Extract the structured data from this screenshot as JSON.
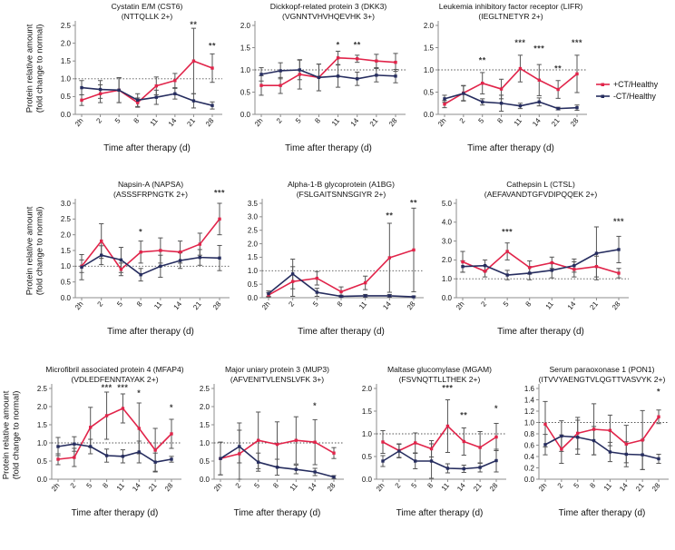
{
  "figure": {
    "x_axis_label": "Time after therapy (d)",
    "y_axis_label_line1": "Protein relative amount",
    "y_axis_label_line2": "(fold change to normal)",
    "colors": {
      "treated": "#e1244a",
      "untreated": "#262d5f",
      "error_bar": "#555555",
      "axis": "#8c8c8c",
      "reference_line": "#555555"
    },
    "legend": {
      "items": [
        {
          "label": "+CT/Healthy",
          "color": "#e1244a"
        },
        {
          "label": "-CT/Healthy",
          "color": "#262d5f"
        }
      ]
    }
  },
  "chart_data": [
    {
      "type": "line",
      "id": "cst6",
      "title_line1": "Cystatin E/M (CST6)",
      "title_line2": "(NTTQLLK 2+)",
      "categories": [
        "2h",
        "2",
        "5",
        "8",
        "11",
        "14",
        "21",
        "28"
      ],
      "ylim": [
        0,
        2.5
      ],
      "ytick_step": 0.5,
      "reference_line": 1.0,
      "series": [
        {
          "name": "+CT/Healthy",
          "color": "#e1244a",
          "values": [
            0.4,
            0.58,
            0.68,
            0.33,
            0.8,
            0.95,
            1.5,
            1.3
          ],
          "errors": [
            0.15,
            0.25,
            0.35,
            0.13,
            0.25,
            0.2,
            0.92,
            0.4
          ]
        },
        {
          "name": "-CT/Healthy",
          "color": "#262d5f",
          "values": [
            0.75,
            0.7,
            0.68,
            0.4,
            0.48,
            0.58,
            0.38,
            0.25
          ],
          "errors": [
            0.2,
            0.25,
            0.35,
            0.18,
            0.2,
            0.15,
            0.2,
            0.1
          ]
        }
      ],
      "significance": [
        {
          "cat": "21",
          "label": "**",
          "y": 2.45
        },
        {
          "cat": "28",
          "label": "**",
          "y": 1.85
        }
      ]
    },
    {
      "type": "line",
      "id": "dkk3",
      "title_line1": "Dickkopf-related protein 3 (DKK3)",
      "title_line2": "(VGNNTVHVHQEVHK 3+)",
      "categories": [
        "2h",
        "2",
        "5",
        "8",
        "11",
        "14",
        "21",
        "28"
      ],
      "ylim": [
        0,
        2.0
      ],
      "ytick_step": 0.5,
      "reference_line": 1.0,
      "series": [
        {
          "name": "+CT/Healthy",
          "color": "#e1244a",
          "values": [
            0.65,
            0.65,
            0.9,
            0.83,
            1.27,
            1.25,
            1.2,
            1.17
          ],
          "errors": [
            0.22,
            0.18,
            0.33,
            0.3,
            0.15,
            0.08,
            0.15,
            0.2
          ]
        },
        {
          "name": "-CT/Healthy",
          "color": "#262d5f",
          "values": [
            0.9,
            0.98,
            1.0,
            0.83,
            0.86,
            0.8,
            0.88,
            0.86
          ],
          "errors": [
            0.15,
            0.18,
            0.22,
            0.3,
            0.25,
            0.15,
            0.15,
            0.15
          ]
        }
      ],
      "significance": [
        {
          "cat": "11",
          "label": "*",
          "y": 1.5
        },
        {
          "cat": "14",
          "label": "**",
          "y": 1.5
        }
      ]
    },
    {
      "type": "line",
      "id": "lifr",
      "title_line1": "Leukemia inhibitory factor receptor (LIFR)",
      "title_line2": "(IEGLTNETYR 2+)",
      "categories": [
        "2h",
        "2",
        "5",
        "8",
        "11",
        "14",
        "21",
        "28"
      ],
      "ylim": [
        0,
        2.0
      ],
      "ytick_step": 0.5,
      "reference_line": 1.0,
      "series": [
        {
          "name": "+CT/Healthy",
          "color": "#e1244a",
          "values": [
            0.23,
            0.48,
            0.7,
            0.57,
            1.03,
            0.77,
            0.56,
            0.91
          ],
          "errors": [
            0.08,
            0.17,
            0.24,
            0.22,
            0.3,
            0.35,
            0.2,
            0.42
          ]
        },
        {
          "name": "-CT/Healthy",
          "color": "#262d5f",
          "values": [
            0.35,
            0.47,
            0.28,
            0.25,
            0.19,
            0.28,
            0.13,
            0.15
          ],
          "errors": [
            0.08,
            0.17,
            0.07,
            0.18,
            0.06,
            0.09,
            0.03,
            0.06
          ]
        }
      ],
      "significance": [
        {
          "cat": "5",
          "label": "**",
          "y": 1.15
        },
        {
          "cat": "11",
          "label": "***",
          "y": 1.55
        },
        {
          "cat": "14",
          "label": "***",
          "y": 1.42
        },
        {
          "cat": "21",
          "label": "**",
          "y": 0.97
        },
        {
          "cat": "28",
          "label": "***",
          "y": 1.55
        }
      ]
    },
    {
      "type": "line",
      "id": "napsa",
      "title_line1": "Napsin-A (NAPSA)",
      "title_line2": "(ASSSFRPNGTK 2+)",
      "categories": [
        "2h",
        "2",
        "5",
        "8",
        "11",
        "14",
        "21",
        "28"
      ],
      "ylim": [
        0,
        3.0
      ],
      "ytick_step": 0.5,
      "reference_line": 1.0,
      "series": [
        {
          "name": "+CT/Healthy",
          "color": "#e1244a",
          "values": [
            1.0,
            1.8,
            0.9,
            1.45,
            1.5,
            1.45,
            1.7,
            2.5
          ],
          "errors": [
            0.2,
            0.55,
            0.2,
            0.35,
            0.4,
            0.35,
            0.35,
            0.5
          ]
        },
        {
          "name": "-CT/Healthy",
          "color": "#262d5f",
          "values": [
            0.97,
            1.35,
            1.2,
            0.73,
            1.0,
            1.18,
            1.28,
            1.26
          ],
          "errors": [
            0.4,
            0.3,
            0.4,
            0.2,
            0.35,
            0.25,
            0.25,
            0.4
          ]
        }
      ],
      "significance": [
        {
          "cat": "8",
          "label": "*",
          "y": 2.0
        },
        {
          "cat": "28",
          "label": "***",
          "y": 3.25
        }
      ]
    },
    {
      "type": "line",
      "id": "a1bg",
      "title_line1": "Alpha-1-B glycoprotein (A1BG)",
      "title_line2": "(FSLGAITSNNSGIYR 2+)",
      "categories": [
        "2h",
        "2",
        "5",
        "8",
        "11",
        "14",
        "28"
      ],
      "ylim": [
        0,
        3.5
      ],
      "ytick_step": 0.5,
      "reference_line": 1.0,
      "series": [
        {
          "name": "+CT/Healthy",
          "color": "#e1244a",
          "values": [
            0.1,
            0.6,
            0.72,
            0.22,
            0.55,
            1.48,
            1.77
          ],
          "errors": [
            0.08,
            0.55,
            0.25,
            0.18,
            0.25,
            1.28,
            1.55
          ]
        },
        {
          "name": "-CT/Healthy",
          "color": "#262d5f",
          "values": [
            0.15,
            0.88,
            0.2,
            0.05,
            0.07,
            0.07,
            0.03
          ],
          "errors": [
            0.1,
            0.55,
            0.15,
            0.04,
            0.05,
            0.05,
            0.03
          ]
        }
      ],
      "significance": [
        {
          "cat": "14",
          "label": "**",
          "y": 2.95
        },
        {
          "cat": "28",
          "label": "**",
          "y": 3.42
        }
      ]
    },
    {
      "type": "line",
      "id": "ctsl",
      "title_line1": "Cathepsin L (CTSL)",
      "title_line2": "(AEFAVANDTGFVDIPQQEK 2+)",
      "categories": [
        "2h",
        "2",
        "5",
        "8",
        "11",
        "14",
        "21",
        "28"
      ],
      "ylim": [
        0,
        5.0
      ],
      "ytick_step": 1.0,
      "reference_line": 1.0,
      "series": [
        {
          "name": "+CT/Healthy",
          "color": "#e1244a",
          "values": [
            1.9,
            1.4,
            2.45,
            1.6,
            1.85,
            1.5,
            1.65,
            1.3
          ],
          "errors": [
            0.55,
            0.3,
            0.45,
            0.35,
            0.3,
            0.4,
            0.55,
            0.25
          ]
        },
        {
          "name": "-CT/Healthy",
          "color": "#262d5f",
          "values": [
            1.65,
            1.7,
            1.2,
            1.3,
            1.45,
            1.7,
            2.35,
            2.55
          ],
          "errors": [
            0.3,
            0.3,
            0.25,
            0.35,
            0.4,
            0.35,
            1.4,
            0.7
          ]
        }
      ],
      "significance": [
        {
          "cat": "5",
          "label": "***",
          "y": 3.35
        },
        {
          "cat": "28",
          "label": "***",
          "y": 3.9
        }
      ]
    },
    {
      "type": "line",
      "id": "mfap4",
      "title_line1": "Microfibril associated protein 4 (MFAP4)",
      "title_line2": "(VDLEDFENNTAYAK 2+)",
      "categories": [
        "2h",
        "2",
        "5",
        "8",
        "11",
        "14",
        "21",
        "28"
      ],
      "ylim": [
        0,
        2.5
      ],
      "ytick_step": 0.5,
      "reference_line": 1.0,
      "series": [
        {
          "name": "+CT/Healthy",
          "color": "#e1244a",
          "values": [
            0.55,
            0.6,
            1.43,
            1.75,
            1.95,
            1.4,
            0.8,
            1.25
          ],
          "errors": [
            0.15,
            0.25,
            0.55,
            0.65,
            0.4,
            0.7,
            0.6,
            0.4
          ]
        },
        {
          "name": "-CT/Healthy",
          "color": "#262d5f",
          "values": [
            0.9,
            0.97,
            0.9,
            0.65,
            0.63,
            0.75,
            0.47,
            0.55
          ],
          "errors": [
            0.25,
            0.2,
            0.2,
            0.18,
            0.18,
            0.3,
            0.25,
            0.08
          ]
        }
      ],
      "significance": [
        {
          "cat": "8",
          "label": "***",
          "y": 2.45
        },
        {
          "cat": "11",
          "label": "***",
          "y": 2.45
        },
        {
          "cat": "14",
          "label": "*",
          "y": 2.3
        },
        {
          "cat": "28",
          "label": "*",
          "y": 1.9
        }
      ]
    },
    {
      "type": "line",
      "id": "mup3",
      "title_line1": "Major uniary protein 3 (MUP3)",
      "title_line2": "(AFVENITVLENSLVFK 3+)",
      "categories": [
        "2h",
        "2",
        "5",
        "8",
        "11",
        "14",
        "28"
      ],
      "ylim": [
        0,
        2.5
      ],
      "ytick_step": 0.5,
      "reference_line": 1.0,
      "series": [
        {
          "name": "+CT/Healthy",
          "color": "#e1244a",
          "values": [
            0.57,
            0.7,
            1.07,
            0.96,
            1.07,
            1.02,
            0.72
          ],
          "errors": [
            0.45,
            0.85,
            0.78,
            0.62,
            0.65,
            0.62,
            0.15
          ]
        },
        {
          "name": "-CT/Healthy",
          "color": "#262d5f",
          "values": [
            0.57,
            0.9,
            0.47,
            0.33,
            0.27,
            0.2,
            0.06
          ],
          "errors": [
            0.45,
            0.45,
            0.25,
            0.22,
            0.12,
            0.1,
            0.04
          ]
        }
      ],
      "significance": [
        {
          "cat": "14",
          "label": "*",
          "y": 1.95
        }
      ]
    },
    {
      "type": "line",
      "id": "mgam",
      "title_line1": "Maltase glucomylase (MGAM)",
      "title_line2": "(FSVNQTTLLTHEK 2+)",
      "categories": [
        "2h",
        "2",
        "5",
        "8",
        "11",
        "14",
        "21",
        "28"
      ],
      "ylim": [
        0,
        2.0
      ],
      "ytick_step": 0.5,
      "reference_line": 1.0,
      "series": [
        {
          "name": "+CT/Healthy",
          "color": "#e1244a",
          "values": [
            0.82,
            0.63,
            0.8,
            0.67,
            1.17,
            0.83,
            0.7,
            0.93
          ],
          "errors": [
            0.25,
            0.15,
            0.22,
            0.18,
            0.58,
            0.3,
            0.35,
            0.3
          ]
        },
        {
          "name": "-CT/Healthy",
          "color": "#262d5f",
          "values": [
            0.4,
            0.62,
            0.4,
            0.4,
            0.24,
            0.23,
            0.26,
            0.41
          ],
          "errors": [
            0.12,
            0.15,
            0.17,
            0.38,
            0.1,
            0.08,
            0.1,
            0.25
          ]
        }
      ],
      "significance": [
        {
          "cat": "11",
          "label": "***",
          "y": 1.95
        },
        {
          "cat": "14",
          "label": "**",
          "y": 1.35
        },
        {
          "cat": "28",
          "label": "*",
          "y": 1.5
        }
      ]
    },
    {
      "type": "line",
      "id": "pon1",
      "title_line1": "Serum paraoxonase 1 (PON1)",
      "title_line2": "(ITVVYAENGTVLQGTTVASVYK 2+)",
      "categories": [
        "2h",
        "2",
        "5",
        "8",
        "11",
        "14",
        "21",
        "28"
      ],
      "ylim": [
        0,
        1.6
      ],
      "ytick_step": 0.2,
      "reference_line": 1.0,
      "series": [
        {
          "name": "+CT/Healthy",
          "color": "#e1244a",
          "values": [
            0.97,
            0.53,
            0.81,
            0.88,
            0.86,
            0.62,
            0.69,
            1.1
          ],
          "errors": [
            0.4,
            0.25,
            0.28,
            0.45,
            0.27,
            0.33,
            0.52,
            0.12
          ]
        },
        {
          "name": "-CT/Healthy",
          "color": "#262d5f",
          "values": [
            0.61,
            0.76,
            0.74,
            0.68,
            0.48,
            0.44,
            0.43,
            0.36
          ],
          "errors": [
            0.18,
            0.27,
            0.3,
            0.25,
            0.17,
            0.22,
            0.26,
            0.08
          ]
        }
      ],
      "significance": [
        {
          "cat": "28",
          "label": "*",
          "y": 1.5
        }
      ]
    }
  ]
}
